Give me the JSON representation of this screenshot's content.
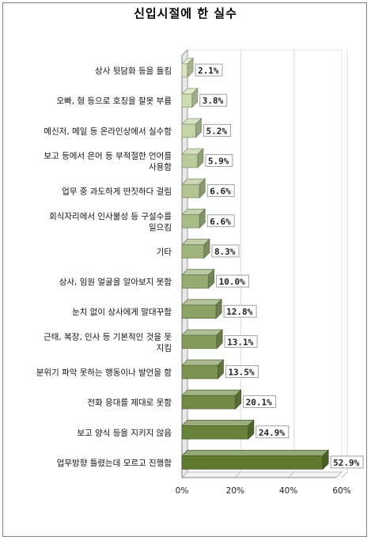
{
  "chart_data": {
    "type": "bar",
    "orientation": "horizontal",
    "title": "신입시절에 한 실수",
    "categories": [
      "상사 뒷담화 등을 들킴",
      "오빠, 형 등으로 호칭을 잘못 부름",
      "메신저, 메일 등 온라인상에서 실수함",
      "보고 등에서 은어 등 부적절한 언어를 사용함",
      "업무 중 과도하게 딴짓하다 걸림",
      "회식자리에서 인사불성 등 구설수를 일으킴",
      "기타",
      "상사, 임원 얼굴을 알아보지 못함",
      "눈치 없이 상사에게 말대꾸함",
      "근태, 복장, 인사 등 기본적인 것을 못 지킴",
      "분위기 파악 못하는 행동이나 발언을 함",
      "전화 응대를 제대로 못함",
      "보고 양식 등을 지키지 않음",
      "업무방향 틀렸는데 모르고 진행함"
    ],
    "category_lines": [
      [
        "상사 뒷담화 등을 들킴"
      ],
      [
        "오빠, 형 등으로 호칭을 잘못 부름"
      ],
      [
        "메신저, 메일 등 온라인상에서 실수함"
      ],
      [
        "보고 등에서 은어 등 부적절한 언어를",
        "사용함"
      ],
      [
        "업무 중 과도하게 딴짓하다 걸림"
      ],
      [
        "회식자리에서 인사불성 등 구설수를",
        "일으킴"
      ],
      [
        "기타"
      ],
      [
        "상사, 임원 얼굴을 알아보지 못함"
      ],
      [
        "눈치 없이 상사에게 말대꾸함"
      ],
      [
        "근태, 복장, 인사 등 기본적인 것을 못",
        "지킴"
      ],
      [
        "분위기 파악 못하는 행동이나 발언을 함"
      ],
      [
        "전화 응대를 제대로 못함"
      ],
      [
        "보고 양식 등을 지키지 않음"
      ],
      [
        "업무방향 틀렸는데 모르고 진행함"
      ]
    ],
    "values": [
      2.1,
      3.8,
      5.2,
      5.9,
      6.6,
      6.6,
      8.3,
      10.0,
      12.8,
      13.1,
      13.5,
      20.1,
      24.9,
      52.9
    ],
    "data_labels": [
      "2.1%",
      "3.8%",
      "5.2%",
      "5.9%",
      "6.6%",
      "6.6%",
      "8.3%",
      "10.0%",
      "12.8%",
      "13.1%",
      "13.5%",
      "20.1%",
      "24.9%",
      "52.9%"
    ],
    "xlim": [
      0,
      60
    ],
    "x_ticks": [
      0,
      20,
      40,
      60
    ],
    "x_tick_labels": [
      "0%",
      "20%",
      "40%",
      "60%"
    ],
    "grid": true,
    "style": "3d",
    "bar_color_light": "#d6e5bd",
    "bar_color_dark": "#5e7a2f",
    "label_border_color": "#8a8a8a"
  }
}
